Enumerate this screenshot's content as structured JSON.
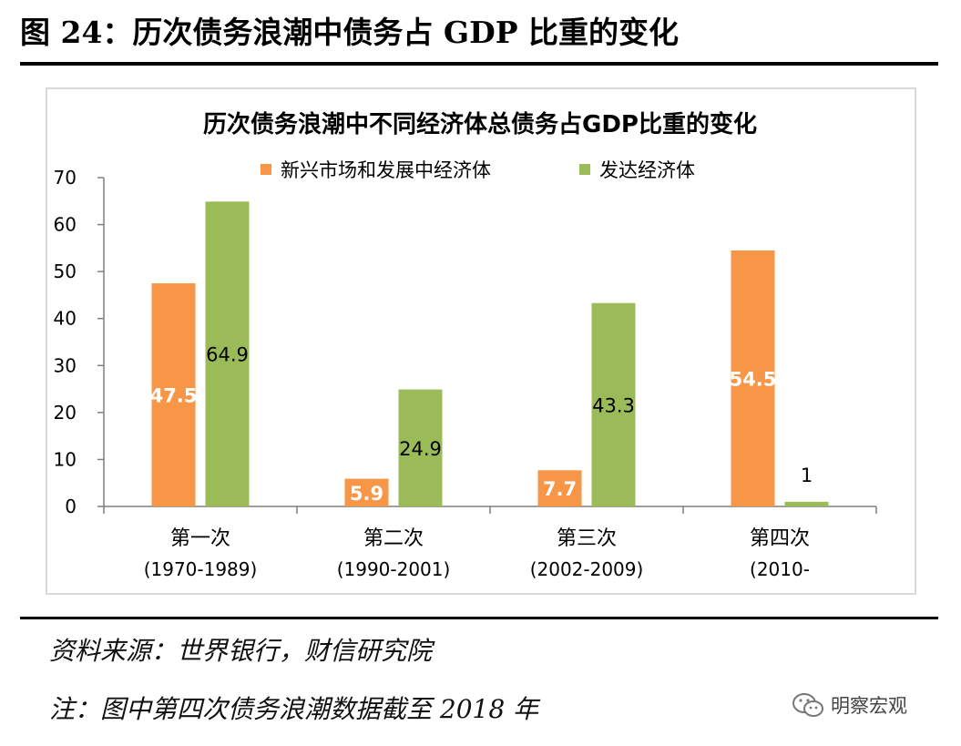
{
  "figure_title": "图 24：历次债务浪潮中债务占 GDP 比重的变化",
  "source_note": "资料来源：世界银行，财信研究院",
  "remark_note": "注：图中第四次债务浪潮数据截至 2018 年",
  "watermark": {
    "text": "明察宏观",
    "icon": "wechat-icon"
  },
  "chart_data": {
    "type": "bar",
    "title": "历次债务浪潮中不同经济体总债务占GDP比重的变化",
    "xlabel": "",
    "ylabel": "",
    "ylim": [
      0,
      70
    ],
    "yticks": [
      0,
      10,
      20,
      30,
      40,
      50,
      60,
      70
    ],
    "grid": false,
    "legend_position": "top",
    "categories": [
      {
        "name": "第一次",
        "period": "(1970-1989)"
      },
      {
        "name": "第二次",
        "period": "(1990-2001)"
      },
      {
        "name": "第三次",
        "period": "(2002-2009)"
      },
      {
        "name": "第四次",
        "period": "(2010-"
      }
    ],
    "series": [
      {
        "name": "新兴市场和发展中经济体",
        "color": "#f79646",
        "label_color": "#ffffff",
        "values": [
          47.5,
          5.9,
          7.7,
          54.5
        ],
        "labels": [
          "47.5",
          "5.9",
          "7.7",
          "54.5"
        ]
      },
      {
        "name": "发达经济体",
        "color": "#9bbb59",
        "label_color": "#000000",
        "values": [
          64.9,
          24.9,
          43.3,
          1
        ],
        "labels": [
          "64.9",
          "24.9",
          "43.3",
          "1"
        ]
      }
    ]
  }
}
